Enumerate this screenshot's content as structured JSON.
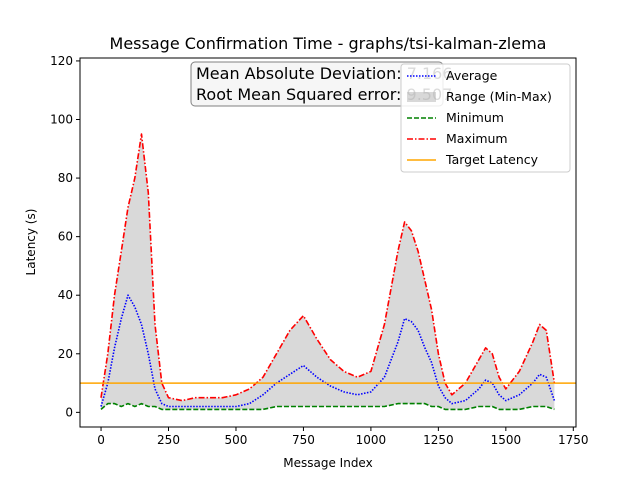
{
  "chart_data": {
    "type": "line",
    "title": "Message Confirmation Time - graphs/tsi-kalman-zlema",
    "xlabel": "Message Index",
    "ylabel": "Latency (s)",
    "xlim": [
      -78,
      1760
    ],
    "ylim": [
      -5,
      121
    ],
    "xticks": [
      0,
      250,
      500,
      750,
      1000,
      1250,
      1500,
      1750
    ],
    "yticks": [
      0,
      20,
      40,
      60,
      80,
      100,
      120
    ],
    "grid": false,
    "legend_position": "top-right",
    "annotation": {
      "line1": "Mean Absolute Deviation: 7.166",
      "line2": "Root Mean Squared error: 9.507"
    },
    "legend": [
      {
        "label": "Average",
        "color": "#0000ff",
        "style": "dotted"
      },
      {
        "label": "Range (Min-Max)",
        "color": "#aaaaaa",
        "style": "fill"
      },
      {
        "label": "Minimum",
        "color": "#008000",
        "style": "dashed"
      },
      {
        "label": "Maximum",
        "color": "#ff0000",
        "style": "dashdot"
      },
      {
        "label": "Target Latency",
        "color": "#ffa500",
        "style": "solid"
      }
    ],
    "target_latency": 10,
    "x": [
      0,
      25,
      50,
      75,
      100,
      125,
      150,
      175,
      200,
      225,
      250,
      300,
      350,
      400,
      450,
      500,
      550,
      600,
      650,
      700,
      750,
      800,
      850,
      900,
      950,
      1000,
      1050,
      1100,
      1125,
      1150,
      1175,
      1200,
      1225,
      1250,
      1275,
      1300,
      1350,
      1400,
      1425,
      1450,
      1475,
      1500,
      1550,
      1600,
      1625,
      1650,
      1680
    ],
    "series": [
      {
        "name": "Maximum",
        "values": [
          5,
          20,
          40,
          55,
          70,
          80,
          95,
          75,
          30,
          10,
          5,
          4,
          5,
          5,
          5,
          6,
          8,
          12,
          20,
          28,
          33,
          25,
          18,
          14,
          12,
          14,
          30,
          55,
          65,
          62,
          55,
          45,
          35,
          20,
          10,
          6,
          10,
          18,
          22,
          20,
          12,
          8,
          14,
          24,
          30,
          28,
          10
        ]
      },
      {
        "name": "Average",
        "values": [
          2,
          10,
          22,
          32,
          40,
          36,
          30,
          20,
          8,
          3,
          2,
          2,
          2,
          2,
          2,
          2,
          3,
          6,
          10,
          13,
          16,
          12,
          9,
          7,
          6,
          7,
          12,
          24,
          32,
          31,
          28,
          22,
          17,
          9,
          5,
          3,
          4,
          8,
          11,
          10,
          6,
          4,
          6,
          10,
          13,
          12,
          4
        ]
      },
      {
        "name": "Minimum",
        "values": [
          1,
          3,
          3,
          2,
          3,
          2,
          3,
          2,
          2,
          1,
          1,
          1,
          1,
          1,
          1,
          1,
          1,
          1,
          2,
          2,
          2,
          2,
          2,
          2,
          2,
          2,
          2,
          3,
          3,
          3,
          3,
          3,
          2,
          2,
          1,
          1,
          1,
          2,
          2,
          2,
          1,
          1,
          1,
          2,
          2,
          2,
          1
        ]
      }
    ]
  }
}
